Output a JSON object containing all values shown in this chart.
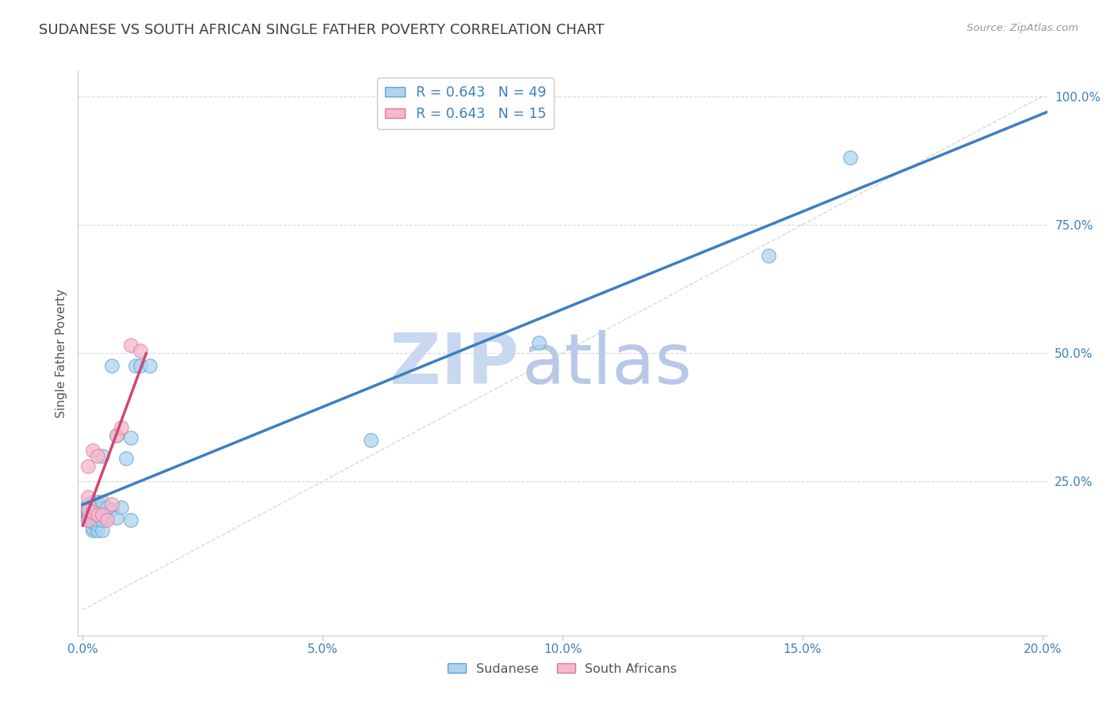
{
  "title": "SUDANESE VS SOUTH AFRICAN SINGLE FATHER POVERTY CORRELATION CHART",
  "source": "Source: ZipAtlas.com",
  "legend_label1": "Sudanese",
  "legend_label2": "South Africans",
  "ylabel_label": "Single Father Poverty",
  "legend_r1": "R = 0.643",
  "legend_n1": "N = 49",
  "legend_r2": "R = 0.643",
  "legend_n2": "N = 15",
  "xlim": [
    -0.001,
    0.201
  ],
  "ylim": [
    -0.05,
    1.05
  ],
  "xtick_vals": [
    0.0,
    0.05,
    0.1,
    0.15,
    0.2
  ],
  "xtick_labels": [
    "0.0%",
    "5.0%",
    "10.0%",
    "15.0%",
    "20.0%"
  ],
  "ytick_vals": [
    0.25,
    0.5,
    0.75,
    1.0
  ],
  "ytick_labels": [
    "25.0%",
    "50.0%",
    "75.0%",
    "100.0%"
  ],
  "blue_color": "#aed4ee",
  "pink_color": "#f5b8cc",
  "blue_edge_color": "#5a9fd4",
  "pink_edge_color": "#e07898",
  "blue_line_color": "#3c7fc0",
  "pink_line_color": "#d04870",
  "diagonal_color": "#c8c8c8",
  "watermark_zip_color": "#c8d8f0",
  "watermark_atlas_color": "#b8c8e8",
  "title_color": "#404040",
  "axis_tick_color": "#3c7fc0",
  "ylabel_color": "#555555",
  "blue_x": [
    0.001,
    0.001,
    0.001,
    0.001,
    0.001,
    0.001,
    0.001,
    0.001,
    0.001,
    0.002,
    0.002,
    0.002,
    0.002,
    0.002,
    0.002,
    0.002,
    0.002,
    0.002,
    0.002,
    0.002,
    0.003,
    0.003,
    0.003,
    0.003,
    0.003,
    0.003,
    0.003,
    0.004,
    0.004,
    0.004,
    0.004,
    0.004,
    0.005,
    0.005,
    0.006,
    0.006,
    0.007,
    0.007,
    0.008,
    0.009,
    0.01,
    0.01,
    0.011,
    0.012,
    0.014,
    0.06,
    0.095,
    0.143,
    0.16
  ],
  "blue_y": [
    0.175,
    0.18,
    0.182,
    0.185,
    0.188,
    0.19,
    0.195,
    0.2,
    0.205,
    0.155,
    0.16,
    0.17,
    0.175,
    0.18,
    0.185,
    0.19,
    0.195,
    0.2,
    0.205,
    0.21,
    0.155,
    0.165,
    0.175,
    0.185,
    0.195,
    0.2,
    0.21,
    0.155,
    0.175,
    0.2,
    0.21,
    0.3,
    0.18,
    0.2,
    0.195,
    0.475,
    0.18,
    0.34,
    0.2,
    0.295,
    0.175,
    0.335,
    0.475,
    0.475,
    0.475,
    0.33,
    0.52,
    0.69,
    0.88
  ],
  "pink_x": [
    0.001,
    0.001,
    0.001,
    0.001,
    0.002,
    0.002,
    0.003,
    0.003,
    0.004,
    0.005,
    0.006,
    0.007,
    0.008,
    0.01,
    0.012
  ],
  "pink_y": [
    0.175,
    0.195,
    0.22,
    0.28,
    0.19,
    0.31,
    0.185,
    0.3,
    0.185,
    0.175,
    0.205,
    0.34,
    0.355,
    0.515,
    0.505
  ]
}
